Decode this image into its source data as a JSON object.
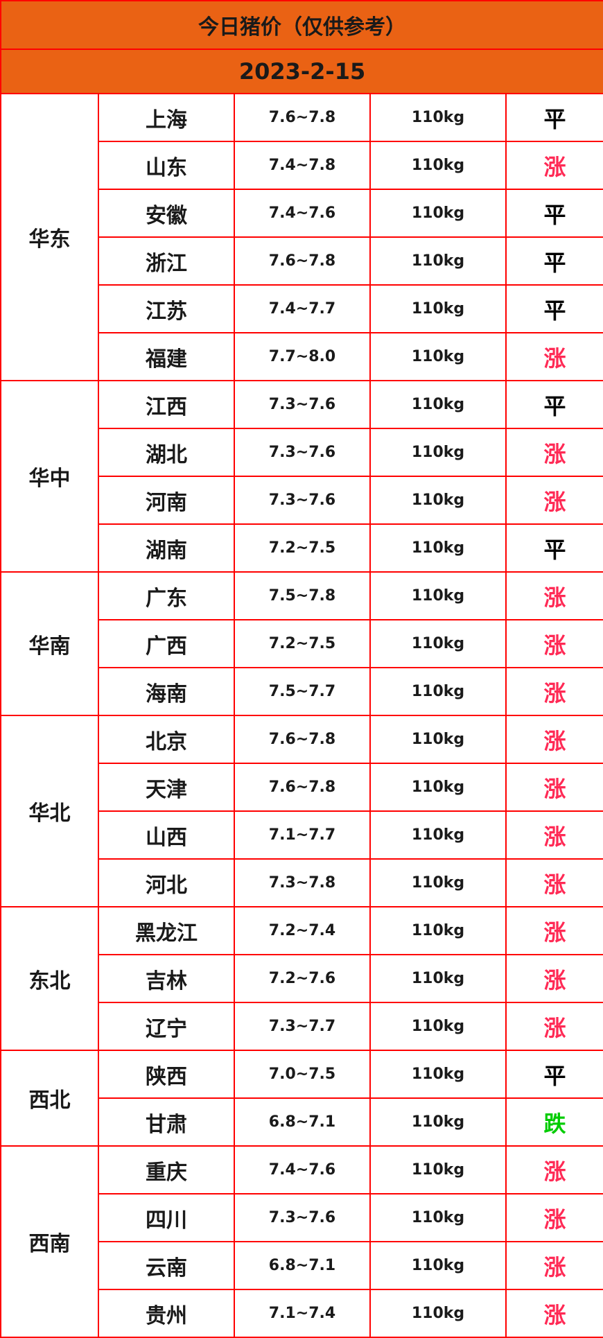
{
  "title": "今日猪价（仅供参考）",
  "date": "2023-2-15",
  "colors": {
    "header_bg": "#ea6214",
    "border": "#ff0000",
    "up": "#ff2a55",
    "down": "#00cc00",
    "flat": "#000000"
  },
  "regions": [
    {
      "name": "华东",
      "rows": [
        {
          "province": "上海",
          "price": "7.6~7.8",
          "weight": "110kg",
          "trend": "平"
        },
        {
          "province": "山东",
          "price": "7.4~7.8",
          "weight": "110kg",
          "trend": "涨"
        },
        {
          "province": "安徽",
          "price": "7.4~7.6",
          "weight": "110kg",
          "trend": "平"
        },
        {
          "province": "浙江",
          "price": "7.6~7.8",
          "weight": "110kg",
          "trend": "平"
        },
        {
          "province": "江苏",
          "price": "7.4~7.7",
          "weight": "110kg",
          "trend": "平"
        },
        {
          "province": "福建",
          "price": "7.7~8.0",
          "weight": "110kg",
          "trend": "涨"
        }
      ]
    },
    {
      "name": "华中",
      "rows": [
        {
          "province": "江西",
          "price": "7.3~7.6",
          "weight": "110kg",
          "trend": "平"
        },
        {
          "province": "湖北",
          "price": "7.3~7.6",
          "weight": "110kg",
          "trend": "涨"
        },
        {
          "province": "河南",
          "price": "7.3~7.6",
          "weight": "110kg",
          "trend": "涨"
        },
        {
          "province": "湖南",
          "price": "7.2~7.5",
          "weight": "110kg",
          "trend": "平"
        }
      ]
    },
    {
      "name": "华南",
      "rows": [
        {
          "province": "广东",
          "price": "7.5~7.8",
          "weight": "110kg",
          "trend": "涨"
        },
        {
          "province": "广西",
          "price": "7.2~7.5",
          "weight": "110kg",
          "trend": "涨"
        },
        {
          "province": "海南",
          "price": "7.5~7.7",
          "weight": "110kg",
          "trend": "涨"
        }
      ]
    },
    {
      "name": "华北",
      "rows": [
        {
          "province": "北京",
          "price": "7.6~7.8",
          "weight": "110kg",
          "trend": "涨"
        },
        {
          "province": "天津",
          "price": "7.6~7.8",
          "weight": "110kg",
          "trend": "涨"
        },
        {
          "province": "山西",
          "price": "7.1~7.7",
          "weight": "110kg",
          "trend": "涨"
        },
        {
          "province": "河北",
          "price": "7.3~7.8",
          "weight": "110kg",
          "trend": "涨"
        }
      ]
    },
    {
      "name": "东北",
      "rows": [
        {
          "province": "黑龙江",
          "price": "7.2~7.4",
          "weight": "110kg",
          "trend": "涨"
        },
        {
          "province": "吉林",
          "price": "7.2~7.6",
          "weight": "110kg",
          "trend": "涨"
        },
        {
          "province": "辽宁",
          "price": "7.3~7.7",
          "weight": "110kg",
          "trend": "涨"
        }
      ]
    },
    {
      "name": "西北",
      "rows": [
        {
          "province": "陕西",
          "price": "7.0~7.5",
          "weight": "110kg",
          "trend": "平"
        },
        {
          "province": "甘肃",
          "price": "6.8~7.1",
          "weight": "110kg",
          "trend": "跌"
        }
      ]
    },
    {
      "name": "西南",
      "rows": [
        {
          "province": "重庆",
          "price": "7.4~7.6",
          "weight": "110kg",
          "trend": "涨"
        },
        {
          "province": "四川",
          "price": "7.3~7.6",
          "weight": "110kg",
          "trend": "涨"
        },
        {
          "province": "云南",
          "price": "6.8~7.1",
          "weight": "110kg",
          "trend": "涨"
        },
        {
          "province": "贵州",
          "price": "7.1~7.4",
          "weight": "110kg",
          "trend": "涨"
        }
      ]
    }
  ]
}
